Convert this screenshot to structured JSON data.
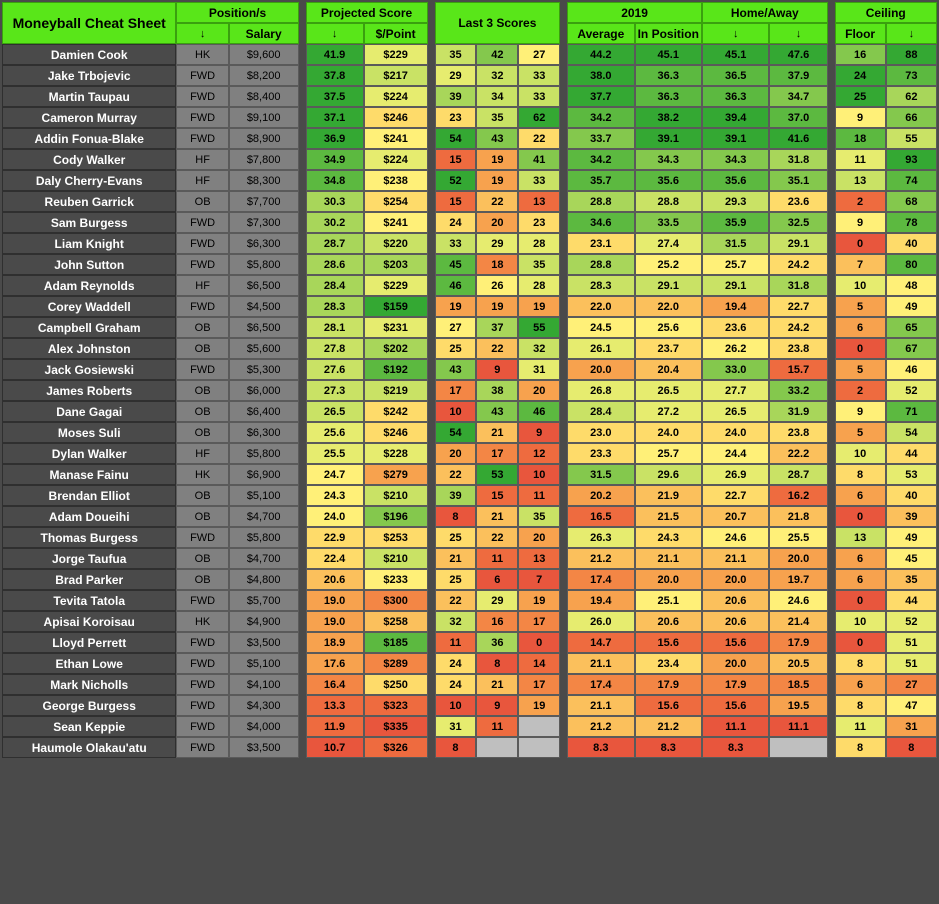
{
  "title": "Moneyball Cheat Sheet",
  "headers": {
    "positions": "Position/s",
    "salary": "Salary",
    "projected": "Projected Score",
    "dp": "$/Point",
    "last3": "Last 3 Scores",
    "year": "2019",
    "average": "Average",
    "inpos": "In Position",
    "ha": "Home/Away",
    "floor": "Floor",
    "ceiling": "Ceiling",
    "arrow": "↓"
  },
  "palette": {
    "scale": [
      "#e8563d",
      "#ee6b3f",
      "#f38645",
      "#f7a24e",
      "#fbc05c",
      "#fedb6a",
      "#fff078",
      "#e6ec6f",
      "#c9e265",
      "#a8d65a",
      "#84c84d",
      "#5cb940",
      "#34a833"
    ]
  },
  "rows": [
    {
      "name": "Damien Cook",
      "pos": "HK",
      "sal": "$9,600",
      "proj": "41.9",
      "dp": "$229",
      "l3": [
        "35",
        "42",
        "27"
      ],
      "avg": "44.2",
      "ip1": "45.1",
      "ip2": "45.1",
      "ha": "47.6",
      "fl": "16",
      "ce": "88",
      "c": {
        "proj": 12,
        "dp": 7,
        "l3": [
          8,
          10,
          6
        ],
        "avg": 12,
        "ip1": 12,
        "ip2": 12,
        "ha": 12,
        "fl": 10,
        "ce": 12
      }
    },
    {
      "name": "Jake Trbojevic",
      "pos": "FWD",
      "sal": "$8,200",
      "proj": "37.8",
      "dp": "$217",
      "l3": [
        "29",
        "32",
        "33"
      ],
      "avg": "38.0",
      "ip1": "36.3",
      "ip2": "36.5",
      "ha": "37.9",
      "fl": "24",
      "ce": "73",
      "c": {
        "proj": 12,
        "dp": 8,
        "l3": [
          7,
          8,
          8
        ],
        "avg": 12,
        "ip1": 11,
        "ip2": 11,
        "ha": 11,
        "fl": 12,
        "ce": 11
      }
    },
    {
      "name": "Martin Taupau",
      "pos": "FWD",
      "sal": "$8,400",
      "proj": "37.5",
      "dp": "$224",
      "l3": [
        "39",
        "34",
        "33"
      ],
      "avg": "37.7",
      "ip1": "36.3",
      "ip2": "36.3",
      "ha": "34.7",
      "fl": "25",
      "ce": "62",
      "c": {
        "proj": 12,
        "dp": 7,
        "l3": [
          9,
          8,
          8
        ],
        "avg": 12,
        "ip1": 11,
        "ip2": 11,
        "ha": 10,
        "fl": 12,
        "ce": 9
      }
    },
    {
      "name": "Cameron Murray",
      "pos": "FWD",
      "sal": "$9,100",
      "proj": "37.1",
      "dp": "$246",
      "l3": [
        "23",
        "35",
        "62"
      ],
      "avg": "34.2",
      "ip1": "38.2",
      "ip2": "39.4",
      "ha": "37.0",
      "fl": "9",
      "ce": "66",
      "c": {
        "proj": 12,
        "dp": 5,
        "l3": [
          5,
          8,
          12
        ],
        "avg": 11,
        "ip1": 12,
        "ip2": 12,
        "ha": 11,
        "fl": 6,
        "ce": 10
      }
    },
    {
      "name": "Addin Fonua-Blake",
      "pos": "FWD",
      "sal": "$8,900",
      "proj": "36.9",
      "dp": "$241",
      "l3": [
        "54",
        "43",
        "22"
      ],
      "avg": "33.7",
      "ip1": "39.1",
      "ip2": "39.1",
      "ha": "41.6",
      "fl": "18",
      "ce": "55",
      "c": {
        "proj": 12,
        "dp": 6,
        "l3": [
          12,
          10,
          5
        ],
        "avg": 10,
        "ip1": 12,
        "ip2": 12,
        "ha": 12,
        "fl": 11,
        "ce": 8
      }
    },
    {
      "name": "Cody Walker",
      "pos": "HF",
      "sal": "$7,800",
      "proj": "34.9",
      "dp": "$224",
      "l3": [
        "15",
        "19",
        "41"
      ],
      "avg": "34.2",
      "ip1": "34.3",
      "ip2": "34.3",
      "ha": "31.8",
      "fl": "11",
      "ce": "93",
      "c": {
        "proj": 11,
        "dp": 7,
        "l3": [
          1,
          3,
          10
        ],
        "avg": 11,
        "ip1": 10,
        "ip2": 10,
        "ha": 9,
        "fl": 7,
        "ce": 12
      }
    },
    {
      "name": "Daly Cherry-Evans",
      "pos": "HF",
      "sal": "$8,300",
      "proj": "34.8",
      "dp": "$238",
      "l3": [
        "52",
        "19",
        "33"
      ],
      "avg": "35.7",
      "ip1": "35.6",
      "ip2": "35.6",
      "ha": "35.1",
      "fl": "13",
      "ce": "74",
      "c": {
        "proj": 11,
        "dp": 6,
        "l3": [
          12,
          3,
          8
        ],
        "avg": 11,
        "ip1": 11,
        "ip2": 11,
        "ha": 10,
        "fl": 8,
        "ce": 11
      }
    },
    {
      "name": "Reuben Garrick",
      "pos": "OB",
      "sal": "$7,700",
      "proj": "30.3",
      "dp": "$254",
      "l3": [
        "15",
        "22",
        "13"
      ],
      "avg": "28.8",
      "ip1": "28.8",
      "ip2": "29.3",
      "ha": "23.6",
      "fl": "2",
      "ce": "68",
      "c": {
        "proj": 9,
        "dp": 5,
        "l3": [
          1,
          4,
          1
        ],
        "avg": 9,
        "ip1": 8,
        "ip2": 8,
        "ha": 5,
        "fl": 1,
        "ce": 10
      }
    },
    {
      "name": "Sam Burgess",
      "pos": "FWD",
      "sal": "$7,300",
      "proj": "30.2",
      "dp": "$241",
      "l3": [
        "24",
        "20",
        "23"
      ],
      "avg": "34.6",
      "ip1": "33.5",
      "ip2": "35.9",
      "ha": "32.5",
      "fl": "9",
      "ce": "78",
      "c": {
        "proj": 9,
        "dp": 6,
        "l3": [
          5,
          3,
          5
        ],
        "avg": 11,
        "ip1": 10,
        "ip2": 11,
        "ha": 10,
        "fl": 6,
        "ce": 11
      }
    },
    {
      "name": "Liam Knight",
      "pos": "FWD",
      "sal": "$6,300",
      "proj": "28.7",
      "dp": "$220",
      "l3": [
        "33",
        "29",
        "28"
      ],
      "avg": "23.1",
      "ip1": "27.4",
      "ip2": "31.5",
      "ha": "29.1",
      "fl": "0",
      "ce": "40",
      "c": {
        "proj": 9,
        "dp": 8,
        "l3": [
          8,
          7,
          7
        ],
        "avg": 5,
        "ip1": 7,
        "ip2": 9,
        "ha": 8,
        "fl": 0,
        "ce": 5
      }
    },
    {
      "name": "John Sutton",
      "pos": "FWD",
      "sal": "$5,800",
      "proj": "28.6",
      "dp": "$203",
      "l3": [
        "45",
        "18",
        "35"
      ],
      "avg": "28.8",
      "ip1": "25.2",
      "ip2": "25.7",
      "ha": "24.2",
      "fl": "7",
      "ce": "80",
      "c": {
        "proj": 9,
        "dp": 9,
        "l3": [
          11,
          2,
          8
        ],
        "avg": 9,
        "ip1": 6,
        "ip2": 6,
        "ha": 5,
        "fl": 4,
        "ce": 11
      }
    },
    {
      "name": "Adam Reynolds",
      "pos": "HF",
      "sal": "$6,500",
      "proj": "28.4",
      "dp": "$229",
      "l3": [
        "46",
        "26",
        "28"
      ],
      "avg": "28.3",
      "ip1": "29.1",
      "ip2": "29.1",
      "ha": "31.8",
      "fl": "10",
      "ce": "48",
      "c": {
        "proj": 9,
        "dp": 7,
        "l3": [
          11,
          6,
          7
        ],
        "avg": 8,
        "ip1": 8,
        "ip2": 8,
        "ha": 9,
        "fl": 7,
        "ce": 6
      }
    },
    {
      "name": "Corey Waddell",
      "pos": "FWD",
      "sal": "$4,500",
      "proj": "28.3",
      "dp": "$159",
      "l3": [
        "19",
        "19",
        "19"
      ],
      "avg": "22.0",
      "ip1": "22.0",
      "ip2": "19.4",
      "ha": "22.7",
      "fl": "5",
      "ce": "49",
      "c": {
        "proj": 9,
        "dp": 12,
        "l3": [
          3,
          3,
          3
        ],
        "avg": 4,
        "ip1": 4,
        "ip2": 3,
        "ha": 5,
        "fl": 3,
        "ce": 6
      }
    },
    {
      "name": "Campbell Graham",
      "pos": "OB",
      "sal": "$6,500",
      "proj": "28.1",
      "dp": "$231",
      "l3": [
        "27",
        "37",
        "55"
      ],
      "avg": "24.5",
      "ip1": "25.6",
      "ip2": "23.6",
      "ha": "24.2",
      "fl": "6",
      "ce": "65",
      "c": {
        "proj": 8,
        "dp": 7,
        "l3": [
          6,
          9,
          12
        ],
        "avg": 6,
        "ip1": 6,
        "ip2": 5,
        "ha": 5,
        "fl": 3,
        "ce": 10
      }
    },
    {
      "name": "Alex Johnston",
      "pos": "OB",
      "sal": "$5,600",
      "proj": "27.8",
      "dp": "$202",
      "l3": [
        "25",
        "22",
        "32"
      ],
      "avg": "26.1",
      "ip1": "23.7",
      "ip2": "26.2",
      "ha": "23.8",
      "fl": "0",
      "ce": "67",
      "c": {
        "proj": 8,
        "dp": 9,
        "l3": [
          5,
          4,
          8
        ],
        "avg": 7,
        "ip1": 5,
        "ip2": 6,
        "ha": 5,
        "fl": 0,
        "ce": 10
      }
    },
    {
      "name": "Jack Gosiewski",
      "pos": "FWD",
      "sal": "$5,300",
      "proj": "27.6",
      "dp": "$192",
      "l3": [
        "43",
        "9",
        "31"
      ],
      "avg": "20.0",
      "ip1": "20.4",
      "ip2": "33.0",
      "ha": "15.7",
      "fl": "5",
      "ce": "46",
      "c": {
        "proj": 8,
        "dp": 11,
        "l3": [
          10,
          0,
          7
        ],
        "avg": 3,
        "ip1": 4,
        "ip2": 10,
        "ha": 1,
        "fl": 3,
        "ce": 6
      }
    },
    {
      "name": "James Roberts",
      "pos": "OB",
      "sal": "$6,000",
      "proj": "27.3",
      "dp": "$219",
      "l3": [
        "17",
        "38",
        "20"
      ],
      "avg": "26.8",
      "ip1": "26.5",
      "ip2": "27.7",
      "ha": "33.2",
      "fl": "2",
      "ce": "52",
      "c": {
        "proj": 8,
        "dp": 8,
        "l3": [
          2,
          9,
          3
        ],
        "avg": 7,
        "ip1": 7,
        "ip2": 7,
        "ha": 10,
        "fl": 1,
        "ce": 7
      }
    },
    {
      "name": "Dane Gagai",
      "pos": "OB",
      "sal": "$6,400",
      "proj": "26.5",
      "dp": "$242",
      "l3": [
        "10",
        "43",
        "46"
      ],
      "avg": "28.4",
      "ip1": "27.2",
      "ip2": "26.5",
      "ha": "31.9",
      "fl": "9",
      "ce": "71",
      "c": {
        "proj": 8,
        "dp": 5,
        "l3": [
          0,
          10,
          11
        ],
        "avg": 8,
        "ip1": 7,
        "ip2": 7,
        "ha": 9,
        "fl": 6,
        "ce": 11
      }
    },
    {
      "name": "Moses Suli",
      "pos": "OB",
      "sal": "$6,300",
      "proj": "25.6",
      "dp": "$246",
      "l3": [
        "54",
        "21",
        "9"
      ],
      "avg": "23.0",
      "ip1": "24.0",
      "ip2": "24.0",
      "ha": "23.8",
      "fl": "5",
      "ce": "54",
      "c": {
        "proj": 7,
        "dp": 5,
        "l3": [
          12,
          4,
          0
        ],
        "avg": 5,
        "ip1": 5,
        "ip2": 5,
        "ha": 5,
        "fl": 3,
        "ce": 8
      }
    },
    {
      "name": "Dylan Walker",
      "pos": "HF",
      "sal": "$5,800",
      "proj": "25.5",
      "dp": "$228",
      "l3": [
        "20",
        "17",
        "12"
      ],
      "avg": "23.3",
      "ip1": "25.7",
      "ip2": "24.4",
      "ha": "22.2",
      "fl": "10",
      "ce": "44",
      "c": {
        "proj": 7,
        "dp": 7,
        "l3": [
          3,
          2,
          1
        ],
        "avg": 5,
        "ip1": 6,
        "ip2": 6,
        "ha": 4,
        "fl": 7,
        "ce": 5
      }
    },
    {
      "name": "Manase Fainu",
      "pos": "HK",
      "sal": "$6,900",
      "proj": "24.7",
      "dp": "$279",
      "l3": [
        "22",
        "53",
        "10"
      ],
      "avg": "31.5",
      "ip1": "29.6",
      "ip2": "26.9",
      "ha": "28.7",
      "fl": "8",
      "ce": "53",
      "c": {
        "proj": 6,
        "dp": 3,
        "l3": [
          4,
          12,
          0
        ],
        "avg": 10,
        "ip1": 8,
        "ip2": 7,
        "ha": 8,
        "fl": 5,
        "ce": 7
      }
    },
    {
      "name": "Brendan Elliot",
      "pos": "OB",
      "sal": "$5,100",
      "proj": "24.3",
      "dp": "$210",
      "l3": [
        "39",
        "15",
        "11"
      ],
      "avg": "20.2",
      "ip1": "21.9",
      "ip2": "22.7",
      "ha": "16.2",
      "fl": "6",
      "ce": "40",
      "c": {
        "proj": 6,
        "dp": 8,
        "l3": [
          9,
          1,
          1
        ],
        "avg": 3,
        "ip1": 4,
        "ip2": 5,
        "ha": 1,
        "fl": 3,
        "ce": 5
      }
    },
    {
      "name": "Adam Doueihi",
      "pos": "OB",
      "sal": "$4,700",
      "proj": "24.0",
      "dp": "$196",
      "l3": [
        "8",
        "21",
        "35"
      ],
      "avg": "16.5",
      "ip1": "21.5",
      "ip2": "20.7",
      "ha": "21.8",
      "fl": "0",
      "ce": "39",
      "c": {
        "proj": 6,
        "dp": 10,
        "l3": [
          0,
          4,
          8
        ],
        "avg": 1,
        "ip1": 4,
        "ip2": 4,
        "ha": 4,
        "fl": 0,
        "ce": 4
      }
    },
    {
      "name": "Thomas Burgess",
      "pos": "FWD",
      "sal": "$5,800",
      "proj": "22.9",
      "dp": "$253",
      "l3": [
        "25",
        "22",
        "20"
      ],
      "avg": "26.3",
      "ip1": "24.3",
      "ip2": "24.6",
      "ha": "25.5",
      "fl": "13",
      "ce": "49",
      "c": {
        "proj": 5,
        "dp": 5,
        "l3": [
          5,
          4,
          3
        ],
        "avg": 7,
        "ip1": 5,
        "ip2": 6,
        "ha": 6,
        "fl": 8,
        "ce": 6
      }
    },
    {
      "name": "Jorge Taufua",
      "pos": "OB",
      "sal": "$4,700",
      "proj": "22.4",
      "dp": "$210",
      "l3": [
        "21",
        "11",
        "13"
      ],
      "avg": "21.2",
      "ip1": "21.1",
      "ip2": "21.1",
      "ha": "20.0",
      "fl": "6",
      "ce": "45",
      "c": {
        "proj": 5,
        "dp": 8,
        "l3": [
          4,
          1,
          1
        ],
        "avg": 4,
        "ip1": 4,
        "ip2": 4,
        "ha": 3,
        "fl": 3,
        "ce": 6
      }
    },
    {
      "name": "Brad Parker",
      "pos": "OB",
      "sal": "$4,800",
      "proj": "20.6",
      "dp": "$233",
      "l3": [
        "25",
        "6",
        "7"
      ],
      "avg": "17.4",
      "ip1": "20.0",
      "ip2": "20.0",
      "ha": "19.7",
      "fl": "6",
      "ce": "35",
      "c": {
        "proj": 4,
        "dp": 6,
        "l3": [
          5,
          0,
          0
        ],
        "avg": 2,
        "ip1": 3,
        "ip2": 3,
        "ha": 3,
        "fl": 3,
        "ce": 4
      }
    },
    {
      "name": "Tevita Tatola",
      "pos": "FWD",
      "sal": "$5,700",
      "proj": "19.0",
      "dp": "$300",
      "l3": [
        "22",
        "29",
        "19"
      ],
      "avg": "19.4",
      "ip1": "25.1",
      "ip2": "20.6",
      "ha": "24.6",
      "fl": "0",
      "ce": "44",
      "c": {
        "proj": 3,
        "dp": 2,
        "l3": [
          4,
          7,
          3
        ],
        "avg": 3,
        "ip1": 6,
        "ip2": 4,
        "ha": 6,
        "fl": 0,
        "ce": 5
      }
    },
    {
      "name": "Apisai Koroisau",
      "pos": "HK",
      "sal": "$4,900",
      "proj": "19.0",
      "dp": "$258",
      "l3": [
        "32",
        "16",
        "17"
      ],
      "avg": "26.0",
      "ip1": "20.6",
      "ip2": "20.6",
      "ha": "21.4",
      "fl": "10",
      "ce": "52",
      "c": {
        "proj": 3,
        "dp": 4,
        "l3": [
          8,
          2,
          2
        ],
        "avg": 7,
        "ip1": 4,
        "ip2": 4,
        "ha": 4,
        "fl": 7,
        "ce": 7
      }
    },
    {
      "name": "Lloyd Perrett",
      "pos": "FWD",
      "sal": "$3,500",
      "proj": "18.9",
      "dp": "$185",
      "l3": [
        "11",
        "36",
        "0"
      ],
      "avg": "14.7",
      "ip1": "15.6",
      "ip2": "15.6",
      "ha": "17.9",
      "fl": "0",
      "ce": "51",
      "c": {
        "proj": 3,
        "dp": 11,
        "l3": [
          1,
          9,
          0
        ],
        "avg": 1,
        "ip1": 1,
        "ip2": 1,
        "ha": 2,
        "fl": 0,
        "ce": 7
      }
    },
    {
      "name": "Ethan Lowe",
      "pos": "FWD",
      "sal": "$5,100",
      "proj": "17.6",
      "dp": "$289",
      "l3": [
        "24",
        "8",
        "14"
      ],
      "avg": "21.1",
      "ip1": "23.4",
      "ip2": "20.0",
      "ha": "20.5",
      "fl": "8",
      "ce": "51",
      "c": {
        "proj": 3,
        "dp": 2,
        "l3": [
          5,
          0,
          1
        ],
        "avg": 4,
        "ip1": 5,
        "ip2": 3,
        "ha": 4,
        "fl": 5,
        "ce": 7
      }
    },
    {
      "name": "Mark Nicholls",
      "pos": "FWD",
      "sal": "$4,100",
      "proj": "16.4",
      "dp": "$250",
      "l3": [
        "24",
        "21",
        "17"
      ],
      "avg": "17.4",
      "ip1": "17.9",
      "ip2": "17.9",
      "ha": "18.5",
      "fl": "6",
      "ce": "27",
      "c": {
        "proj": 2,
        "dp": 5,
        "l3": [
          5,
          4,
          2
        ],
        "avg": 2,
        "ip1": 2,
        "ip2": 2,
        "ha": 2,
        "fl": 3,
        "ce": 2
      }
    },
    {
      "name": "George Burgess",
      "pos": "FWD",
      "sal": "$4,300",
      "proj": "13.3",
      "dp": "$323",
      "l3": [
        "10",
        "9",
        "19"
      ],
      "avg": "21.1",
      "ip1": "15.6",
      "ip2": "15.6",
      "ha": "19.5",
      "fl": "8",
      "ce": "47",
      "c": {
        "proj": 1,
        "dp": 1,
        "l3": [
          0,
          0,
          3
        ],
        "avg": 4,
        "ip1": 1,
        "ip2": 1,
        "ha": 3,
        "fl": 5,
        "ce": 6
      }
    },
    {
      "name": "Sean Keppie",
      "pos": "FWD",
      "sal": "$4,000",
      "proj": "11.9",
      "dp": "$335",
      "l3": [
        "31",
        "11",
        ""
      ],
      "avg": "21.2",
      "ip1": "21.2",
      "ip2": "11.1",
      "ha": "11.1",
      "fl": "11",
      "ce": "31",
      "c": {
        "proj": 1,
        "dp": 0,
        "l3": [
          7,
          1,
          -1
        ],
        "avg": 4,
        "ip1": 4,
        "ip2": 0,
        "ha": 0,
        "fl": 7,
        "ce": 3
      }
    },
    {
      "name": "Haumole Olakau'atu",
      "pos": "FWD",
      "sal": "$3,500",
      "proj": "10.7",
      "dp": "$326",
      "l3": [
        "8",
        "",
        ""
      ],
      "avg": "8.3",
      "ip1": "8.3",
      "ip2": "8.3",
      "ha": "",
      "fl": "8",
      "ce": "8",
      "c": {
        "proj": 0,
        "dp": 1,
        "l3": [
          0,
          -1,
          -1
        ],
        "avg": 0,
        "ip1": 0,
        "ip2": 0,
        "ha": -1,
        "fl": 5,
        "ce": 0
      }
    }
  ]
}
